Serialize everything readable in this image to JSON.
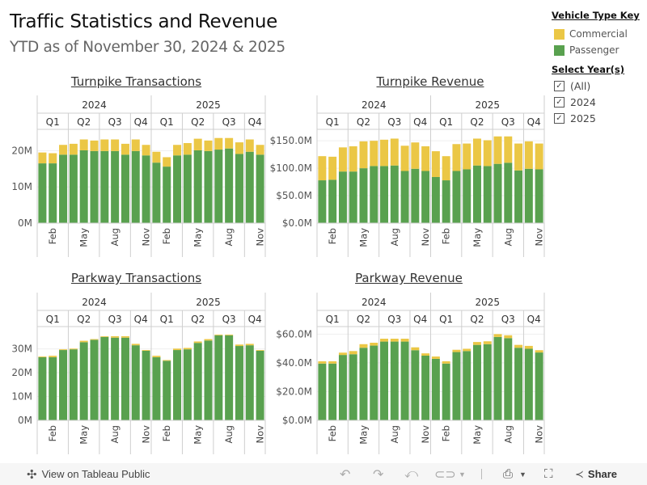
{
  "header": {
    "title": "Traffic Statistics and Revenue",
    "subtitle": "YTD as of November 30, 2024 & 2025"
  },
  "legend": {
    "heading": "Vehicle Type Key",
    "items": [
      {
        "label": "Commercial",
        "color": "#ebc745"
      },
      {
        "label": "Passenger",
        "color": "#59a14f"
      }
    ]
  },
  "year_filter": {
    "heading": "Select Year(s)",
    "options": [
      {
        "label": "(All)",
        "checked": true
      },
      {
        "label": "2024",
        "checked": true
      },
      {
        "label": "2025",
        "checked": true
      }
    ]
  },
  "footer": {
    "view_label": "View on Tableau Public",
    "share_label": "Share"
  },
  "chart_data": [
    {
      "type": "bar",
      "stacked": true,
      "title": "Turnpike Transactions",
      "years": [
        "2024",
        "2025"
      ],
      "quarters": [
        "Q1",
        "Q2",
        "Q3",
        "Q4"
      ],
      "months_per_quarter": [
        3,
        3,
        3,
        2
      ],
      "month_ticks": [
        "Feb",
        "May",
        "Aug",
        "Nov"
      ],
      "categories": [
        "Jan 2024",
        "Feb 2024",
        "Mar 2024",
        "Apr 2024",
        "May 2024",
        "Jun 2024",
        "Jul 2024",
        "Aug 2024",
        "Sep 2024",
        "Oct 2024",
        "Nov 2024",
        "Jan 2025",
        "Feb 2025",
        "Mar 2025",
        "Apr 2025",
        "May 2025",
        "Jun 2025",
        "Jul 2025",
        "Aug 2025",
        "Sep 2025",
        "Oct 2025",
        "Nov 2025"
      ],
      "series": [
        {
          "name": "Passenger",
          "values": [
            16.5,
            16.5,
            18.9,
            18.9,
            20.1,
            19.9,
            19.9,
            19.9,
            18.9,
            19.9,
            18.7,
            16.7,
            15.6,
            18.7,
            18.9,
            20.1,
            19.9,
            20.3,
            20.6,
            19.1,
            19.7,
            18.9
          ]
        },
        {
          "name": "Commercial",
          "values": [
            3.0,
            2.8,
            2.7,
            3.0,
            3.0,
            2.9,
            3.2,
            3.2,
            3.0,
            3.2,
            2.9,
            3.0,
            2.6,
            2.9,
            3.2,
            3.2,
            2.9,
            3.2,
            2.9,
            3.2,
            3.4,
            2.7
          ]
        }
      ],
      "yticks": [
        "0M",
        "10M",
        "20M"
      ],
      "ytick_values": [
        0,
        10,
        20
      ],
      "ylim": [
        0,
        25
      ],
      "ylabel": "",
      "xlabel": ""
    },
    {
      "type": "bar",
      "stacked": true,
      "title": "Turnpike Revenue",
      "years": [
        "2024",
        "2025"
      ],
      "quarters": [
        "Q1",
        "Q2",
        "Q3",
        "Q4"
      ],
      "months_per_quarter": [
        3,
        3,
        3,
        2
      ],
      "month_ticks": [
        "Feb",
        "May",
        "Aug",
        "Nov"
      ],
      "categories": [
        "Jan 2024",
        "Feb 2024",
        "Mar 2024",
        "Apr 2024",
        "May 2024",
        "Jun 2024",
        "Jul 2024",
        "Aug 2024",
        "Sep 2024",
        "Oct 2024",
        "Nov 2024",
        "Jan 2025",
        "Feb 2025",
        "Mar 2025",
        "Apr 2025",
        "May 2025",
        "Jun 2025",
        "Jul 2025",
        "Aug 2025",
        "Sep 2025",
        "Oct 2025",
        "Nov 2025"
      ],
      "series": [
        {
          "name": "Passenger",
          "values": [
            78,
            79,
            94,
            94,
            100,
            104,
            104,
            105,
            95,
            99,
            95,
            84,
            78,
            95,
            98,
            105,
            104,
            108,
            110,
            96,
            99,
            98
          ]
        },
        {
          "name": "Commercial",
          "values": [
            44,
            42,
            44,
            46,
            49,
            46,
            48,
            49,
            46,
            48,
            45,
            47,
            44,
            49,
            47,
            49,
            47,
            50,
            48,
            49,
            50,
            47
          ]
        }
      ],
      "yticks": [
        "$0.0M",
        "$50.0M",
        "$100.0M",
        "$150.0M"
      ],
      "ytick_values": [
        0,
        50,
        100,
        150
      ],
      "ylim": [
        0,
        165
      ],
      "ylabel": "",
      "xlabel": ""
    },
    {
      "type": "bar",
      "stacked": true,
      "title": "Parkway Transactions",
      "years": [
        "2024",
        "2025"
      ],
      "quarters": [
        "Q1",
        "Q2",
        "Q3",
        "Q4"
      ],
      "months_per_quarter": [
        3,
        3,
        3,
        2
      ],
      "month_ticks": [
        "Feb",
        "May",
        "Aug",
        "Nov"
      ],
      "categories": [
        "Jan 2024",
        "Feb 2024",
        "Mar 2024",
        "Apr 2024",
        "May 2024",
        "Jun 2024",
        "Jul 2024",
        "Aug 2024",
        "Sep 2024",
        "Oct 2024",
        "Nov 2024",
        "Jan 2025",
        "Feb 2025",
        "Mar 2025",
        "Apr 2025",
        "May 2025",
        "Jun 2025",
        "Jul 2025",
        "Aug 2025",
        "Sep 2025",
        "Oct 2025",
        "Nov 2025"
      ],
      "series": [
        {
          "name": "Passenger",
          "values": [
            26.5,
            26.5,
            29.5,
            29.8,
            32.8,
            33.8,
            35.0,
            34.7,
            34.7,
            31.5,
            29.2,
            26.5,
            25.0,
            29.5,
            29.8,
            32.5,
            33.5,
            35.7,
            35.7,
            31.2,
            31.5,
            29.2
          ]
        },
        {
          "name": "Commercial",
          "values": [
            0.3,
            0.6,
            0.3,
            0.3,
            0.6,
            0.3,
            0.3,
            0.6,
            0.6,
            0.6,
            0.3,
            0.6,
            0.3,
            0.6,
            0.6,
            0.6,
            0.6,
            0.3,
            0.3,
            0.6,
            0.6,
            0.3
          ]
        }
      ],
      "yticks": [
        "0M",
        "10M",
        "20M",
        "30M"
      ],
      "ytick_values": [
        0,
        10,
        20,
        30
      ],
      "ylim": [
        0,
        38
      ],
      "ylabel": "",
      "xlabel": ""
    },
    {
      "type": "bar",
      "stacked": true,
      "title": "Parkway Revenue",
      "years": [
        "2024",
        "2025"
      ],
      "quarters": [
        "Q1",
        "Q2",
        "Q3",
        "Q4"
      ],
      "months_per_quarter": [
        3,
        3,
        3,
        2
      ],
      "month_ticks": [
        "Feb",
        "May",
        "Aug",
        "Nov"
      ],
      "categories": [
        "Jan 2024",
        "Feb 2024",
        "Mar 2024",
        "Apr 2024",
        "May 2024",
        "Jun 2024",
        "Jul 2024",
        "Aug 2024",
        "Sep 2024",
        "Oct 2024",
        "Nov 2024",
        "Jan 2025",
        "Feb 2025",
        "Mar 2025",
        "Apr 2025",
        "May 2025",
        "Jun 2025",
        "Jul 2025",
        "Aug 2025",
        "Sep 2025",
        "Oct 2025",
        "Nov 2025"
      ],
      "series": [
        {
          "name": "Passenger",
          "values": [
            39.5,
            39.5,
            45.5,
            46,
            50.5,
            52,
            54.8,
            54.8,
            54.8,
            48.8,
            45,
            42.8,
            39.5,
            47.5,
            48.2,
            52.5,
            53,
            58,
            57.2,
            50.5,
            49.8,
            47.2
          ]
        },
        {
          "name": "Commercial",
          "values": [
            1.6,
            1.6,
            1.6,
            2.2,
            2.5,
            2.0,
            2.0,
            2.0,
            2.0,
            2.0,
            1.6,
            1.6,
            1.6,
            1.6,
            1.6,
            2.0,
            2.0,
            2.0,
            2.0,
            2.0,
            2.0,
            1.6
          ]
        }
      ],
      "yticks": [
        "$0.0M",
        "$20.0M",
        "$40.0M",
        "$60.0M"
      ],
      "ytick_values": [
        0,
        20,
        40,
        60
      ],
      "ylim": [
        0,
        63
      ],
      "ylabel": "",
      "xlabel": ""
    }
  ]
}
